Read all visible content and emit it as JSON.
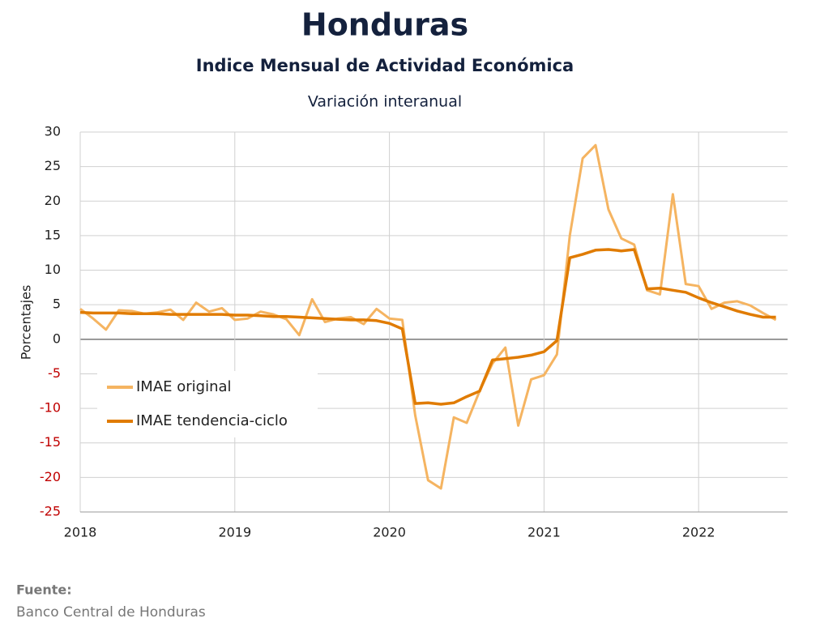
{
  "chart_data": {
    "type": "line",
    "title": "Honduras",
    "subtitle": "Indice Mensual de  Actividad Económica",
    "subtitle2": "Variación interanual",
    "y_label": "Porcentajes",
    "source_label": "Fuente:",
    "source": "Banco Central de Honduras",
    "categories": [
      "2018",
      null,
      null,
      null,
      null,
      null,
      null,
      null,
      null,
      null,
      null,
      null,
      "2019",
      null,
      null,
      null,
      null,
      null,
      null,
      null,
      null,
      null,
      null,
      null,
      "2020",
      null,
      null,
      null,
      null,
      null,
      null,
      null,
      null,
      null,
      null,
      null,
      "2021",
      null,
      null,
      null,
      null,
      null,
      null,
      null,
      null,
      null,
      null,
      null,
      "2022",
      null,
      null,
      null,
      null,
      null,
      null
    ],
    "series": [
      {
        "name": "IMAE original",
        "color": "#f5b461",
        "values": [
          4.4,
          3.0,
          1.4,
          4.2,
          4.1,
          3.7,
          3.9,
          4.3,
          2.8,
          5.3,
          4.0,
          4.5,
          2.8,
          3.0,
          4.0,
          3.6,
          2.9,
          0.6,
          5.8,
          2.5,
          3.0,
          3.2,
          2.2,
          4.4,
          3.0,
          2.8,
          -11.0,
          -20.4,
          -21.6,
          -11.3,
          -12.1,
          -7.5,
          -3.5,
          -1.2,
          -12.5,
          -5.8,
          -5.2,
          -2.2,
          15.0,
          26.2,
          28.1,
          18.8,
          14.6,
          13.7,
          7.1,
          6.5,
          21.0,
          8.0,
          7.7,
          4.4,
          5.3,
          5.5,
          4.9,
          3.8,
          2.8
        ]
      },
      {
        "name": "IMAE tendencia-ciclo",
        "color": "#e07b00",
        "values": [
          3.9,
          3.8,
          3.8,
          3.8,
          3.7,
          3.7,
          3.7,
          3.6,
          3.6,
          3.6,
          3.6,
          3.6,
          3.5,
          3.5,
          3.4,
          3.3,
          3.3,
          3.2,
          3.1,
          3.0,
          2.9,
          2.8,
          2.8,
          2.7,
          2.3,
          1.5,
          -9.3,
          -9.2,
          -9.4,
          -9.2,
          -8.3,
          -7.5,
          -3.0,
          -2.8,
          -2.6,
          -2.3,
          -1.8,
          -0.2,
          11.8,
          12.3,
          12.9,
          13.0,
          12.8,
          13.0,
          7.3,
          7.4,
          7.1,
          6.8,
          6.0,
          5.3,
          4.7,
          4.1,
          3.6,
          3.2,
          3.2
        ]
      }
    ],
    "ylim": [
      -25,
      30
    ],
    "yticks": [
      -25,
      -20,
      -15,
      -10,
      -5,
      0,
      5,
      10,
      15,
      20,
      25,
      30
    ],
    "grid": true,
    "legend": "lower left"
  }
}
